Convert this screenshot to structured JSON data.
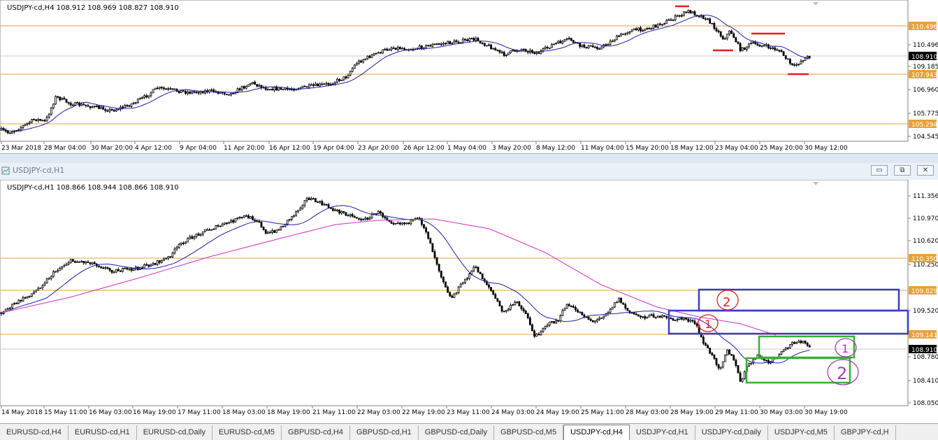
{
  "top_chart": {
    "info": "USDJPY-cd,H4  108.912 108.969 108.827 108.910",
    "price_labels": [
      "110.496",
      "109.185",
      "106.960",
      "105.775",
      "104.545"
    ],
    "hline_labels": [
      "110.496",
      "107.943",
      "105.294"
    ],
    "current_price": "108.910",
    "time_labels": [
      "23 Mar 2018",
      "28 Mar 04:00",
      "30 Mar 20:00",
      "4 Apr 12:00",
      "9 Apr 04:00",
      "11 Apr 20:00",
      "16 Apr 12:00",
      "19 Apr 04:00",
      "23 Apr 20:00",
      "26 Apr 12:00",
      "1 May 04:00",
      "3 May 20:00",
      "8 May 12:00",
      "11 May 04:00",
      "15 May 20:00",
      "18 May 12:00",
      "23 May 04:00",
      "25 May 20:00",
      "30 May 12:00"
    ]
  },
  "bottom_window": {
    "title": "USDJPY-cd,H1",
    "minimize_label": "▭",
    "restore_label": "⧉",
    "close_label": "✕"
  },
  "bottom_chart": {
    "info": "USDJPY-cd,H1  108.866 108.944 108.866 108.910",
    "price_labels": [
      "111.356",
      "110.970",
      "110.620",
      "110.250",
      "109.520",
      "108.780",
      "108.410",
      "108.050"
    ],
    "hline_labels": [
      "110.350",
      "109.829",
      "109.141"
    ],
    "current_price": "108.910",
    "time_labels": [
      "14 May 2018",
      "15 May 11:00",
      "16 May 03:00",
      "16 May 19:00",
      "17 May 11:00",
      "18 May 03:00",
      "18 May 19:00",
      "21 May 11:00",
      "22 May 03:00",
      "22 May 19:00",
      "23 May 11:00",
      "24 May 03:00",
      "24 May 19:00",
      "25 May 11:00",
      "28 May 03:00",
      "28 May 19:00",
      "29 May 11:00",
      "30 May 03:00",
      "30 May 19:00"
    ],
    "annotations": [
      "1",
      "2",
      "1",
      "2"
    ]
  },
  "tabs": [
    "EURUSD-cd,H4",
    "EURUSD-cd,H1",
    "EURUSD-cd,Daily",
    "EURUSD-cd,M5",
    "GBPUSD-cd,H4",
    "GBPUSD-cd,H1",
    "GBPUSD-cd,Daily",
    "GBPUSD-cd,M5",
    "USDJPY-cd,H4",
    "USDJPY-cd,H1",
    "USDJPY-cd,Daily",
    "USDJPY-cd,M5",
    "GBPJPY-cd,H"
  ],
  "active_tab_index": 8,
  "colors": {
    "hline": "#e8a13a",
    "ma_blue": "#1c1ca8",
    "ma_magenta": "#cc33cc",
    "red_marks": "#e02020",
    "blue_box": "#3a3ac8",
    "green_box": "#34b034",
    "purple_ink": "#a040b0"
  }
}
